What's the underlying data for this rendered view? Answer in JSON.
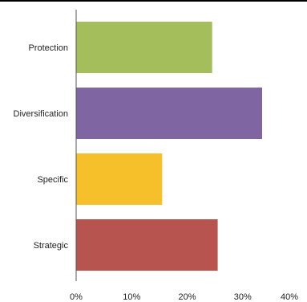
{
  "chart_data": {
    "type": "bar",
    "orientation": "horizontal",
    "categories": [
      "Protection",
      "Diversification",
      "Specific",
      "Strategic"
    ],
    "values": [
      24.5,
      33.5,
      15.5,
      25.5
    ],
    "colors": [
      "#a4be5c",
      "#7f66a2",
      "#f5c02a",
      "#b85450"
    ],
    "xlim": [
      0,
      40
    ],
    "xticks": [
      0,
      10,
      20,
      30,
      40
    ],
    "xtick_labels": [
      "0%",
      "10%",
      "20%",
      "30%",
      "40%"
    ],
    "grid": false,
    "legend": "none"
  }
}
